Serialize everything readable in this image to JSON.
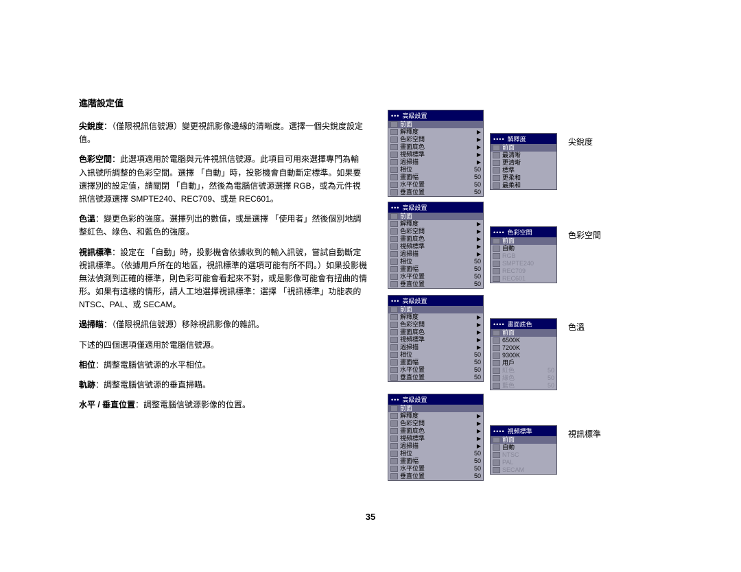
{
  "colors": {
    "osd_bg": "#aaaabb",
    "osd_titlebar": "#000060",
    "osd_hl": "#6a6a8a",
    "text": "#000000",
    "white": "#ffffff",
    "dim": "#888899"
  },
  "page_number": "35",
  "section_title": "進階設定值",
  "paragraphs": {
    "p1_term": "尖銳度",
    "p1_text": "：（僅限視訊信號源）變更視訊影像邊緣的清晰度。選擇一個尖銳度設定值。",
    "p2_term": "色彩空間",
    "p2_text": "：此選項適用於電腦與元件視訊信號源。此項目可用來選擇專門為輸入訊號所調整的色彩空間。選擇 「自動」時，投影機會自動斷定標準。如果要選擇別的設定值，請關閉 「自動」，然後為電腦信號源選擇 RGB，或為元件視訊信號源選擇 SMPTE240、REC709、或是 REC601。",
    "p3_term": "色溫",
    "p3_text": "：變更色彩的強度。選擇列出的數值，或是選擇 「使用者」然後個別地調整紅色、綠色、和藍色的強度。",
    "p4_term": "視訊標準",
    "p4_text": "：設定在 「自動」時，投影機會依據收到的輸入訊號，嘗試自動斷定視訊標準。（依據用戶所在的地區，視訊標準的選項可能有所不同。）如果投影機無法偵測到正確的標準，則色彩可能會看起來不對，或是影像可能會有扭曲的情形。如果有這樣的情形，請人工地選擇視訊標準：選擇 「視訊標準」功能表的 NTSC、PAL、或 SECAM。",
    "p5_term": "過掃瞄",
    "p5_text": "：（僅限視訊信號源）移除視訊影像的雜訊。",
    "p6_text": "下述的四個選項僅適用於電腦信號源。",
    "p7_term": "相位",
    "p7_text": "：調整電腦信號源的水平相位。",
    "p8_term": "軌跡",
    "p8_text": "：調整電腦信號源的垂直掃瞄。",
    "p9_term": "水平 / 垂直位置",
    "p9_text": "：調整電腦信號源影像的位置。"
  },
  "osd_main_title": "高級設置",
  "osd_main_items": [
    {
      "label": "前面",
      "hl": true,
      "arrow": false
    },
    {
      "label": "解釋度",
      "arrow": true
    },
    {
      "label": "色彩空間",
      "arrow": true
    },
    {
      "label": "畫面底色",
      "arrow": true
    },
    {
      "label": "視頻標準",
      "arrow": true
    },
    {
      "label": "過掃描",
      "arrow": true
    },
    {
      "label": "相位",
      "val": "50"
    },
    {
      "label": "畫面幅",
      "val": "50"
    },
    {
      "label": "水平位置",
      "val": "50"
    },
    {
      "label": "垂直位置",
      "val": "50"
    }
  ],
  "sub_menus": {
    "sharpness": {
      "title": "解釋度",
      "items": [
        {
          "label": "前面",
          "hl": true
        },
        {
          "label": "最清晰"
        },
        {
          "label": "更清晰"
        },
        {
          "label": "標準"
        },
        {
          "label": "更柔和"
        },
        {
          "label": "最柔和"
        }
      ]
    },
    "colorspace": {
      "title": "色彩空間",
      "items": [
        {
          "label": "前面",
          "hl": true
        },
        {
          "label": "自動"
        },
        {
          "label": "RGB",
          "dim": true
        },
        {
          "label": "SMPTE240",
          "dim": true
        },
        {
          "label": "REC709",
          "dim": true
        },
        {
          "label": "REC601",
          "dim": true
        }
      ]
    },
    "colortemp": {
      "title": "畫面底色",
      "items": [
        {
          "label": "前面",
          "hl": true
        },
        {
          "label": "6500K"
        },
        {
          "label": "7200K"
        },
        {
          "label": "9300K"
        },
        {
          "label": "用戶"
        },
        {
          "label": "紅色",
          "val": "50",
          "dim": true
        },
        {
          "label": "綠色",
          "val": "50",
          "dim": true
        },
        {
          "label": "藍色",
          "val": "50",
          "dim": true
        }
      ]
    },
    "vstd": {
      "title": "視頻標準",
      "items": [
        {
          "label": "前面",
          "hl": true
        },
        {
          "label": "自動"
        },
        {
          "label": "NTSC",
          "dim": true
        },
        {
          "label": "PAL",
          "dim": true
        },
        {
          "label": "SECAM",
          "dim": true
        }
      ]
    }
  },
  "captions": {
    "sharp": "尖銳度",
    "color": "色彩空間",
    "temp": "色溫",
    "vstd": "視訊標準"
  }
}
